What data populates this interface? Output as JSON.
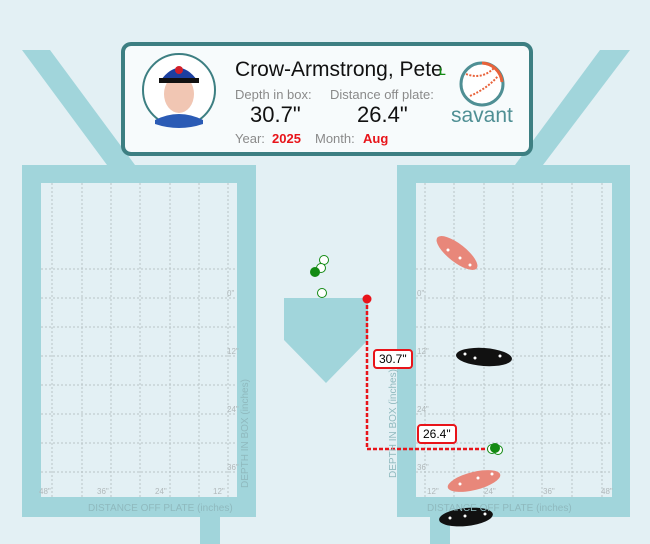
{
  "player": {
    "name": "Crow-Armstrong, Pete",
    "bats": "L",
    "depth_label": "Depth in box:",
    "depth_value": "30.7\"",
    "distance_label": "Distance off plate:",
    "distance_value": "26.4\"",
    "year_label": "Year:",
    "year": "2025",
    "month_label": "Month:",
    "month": "Aug",
    "logo_text": "savant"
  },
  "left_box": {
    "depth_ticks": [
      "0\"",
      "12\"",
      "24\"",
      "36\""
    ],
    "distance_ticks": [
      "48\"",
      "36\"",
      "24\"",
      "12\""
    ],
    "depth_axis": "DEPTH IN BOX (inches)",
    "distance_axis": "DISTANCE OFF PLATE (inches)"
  },
  "right_box": {
    "depth_ticks": [
      "0\"",
      "12\"",
      "24\"",
      "36\""
    ],
    "distance_ticks": [
      "12\"",
      "24\"",
      "36\"",
      "48\""
    ],
    "depth_axis": "DEPTH IN BOX (inches)",
    "distance_axis": "DISTANCE OFF PLATE (inches)"
  },
  "annotations": {
    "depth": "30.7\"",
    "distance": "26.4\""
  },
  "colors": {
    "box": "#a1d5db",
    "card_border": "#3d7f82",
    "highlight": "#e8141a",
    "points": "#138a13",
    "shoe_front": "#e8877a",
    "shoe_back": "#111111"
  }
}
